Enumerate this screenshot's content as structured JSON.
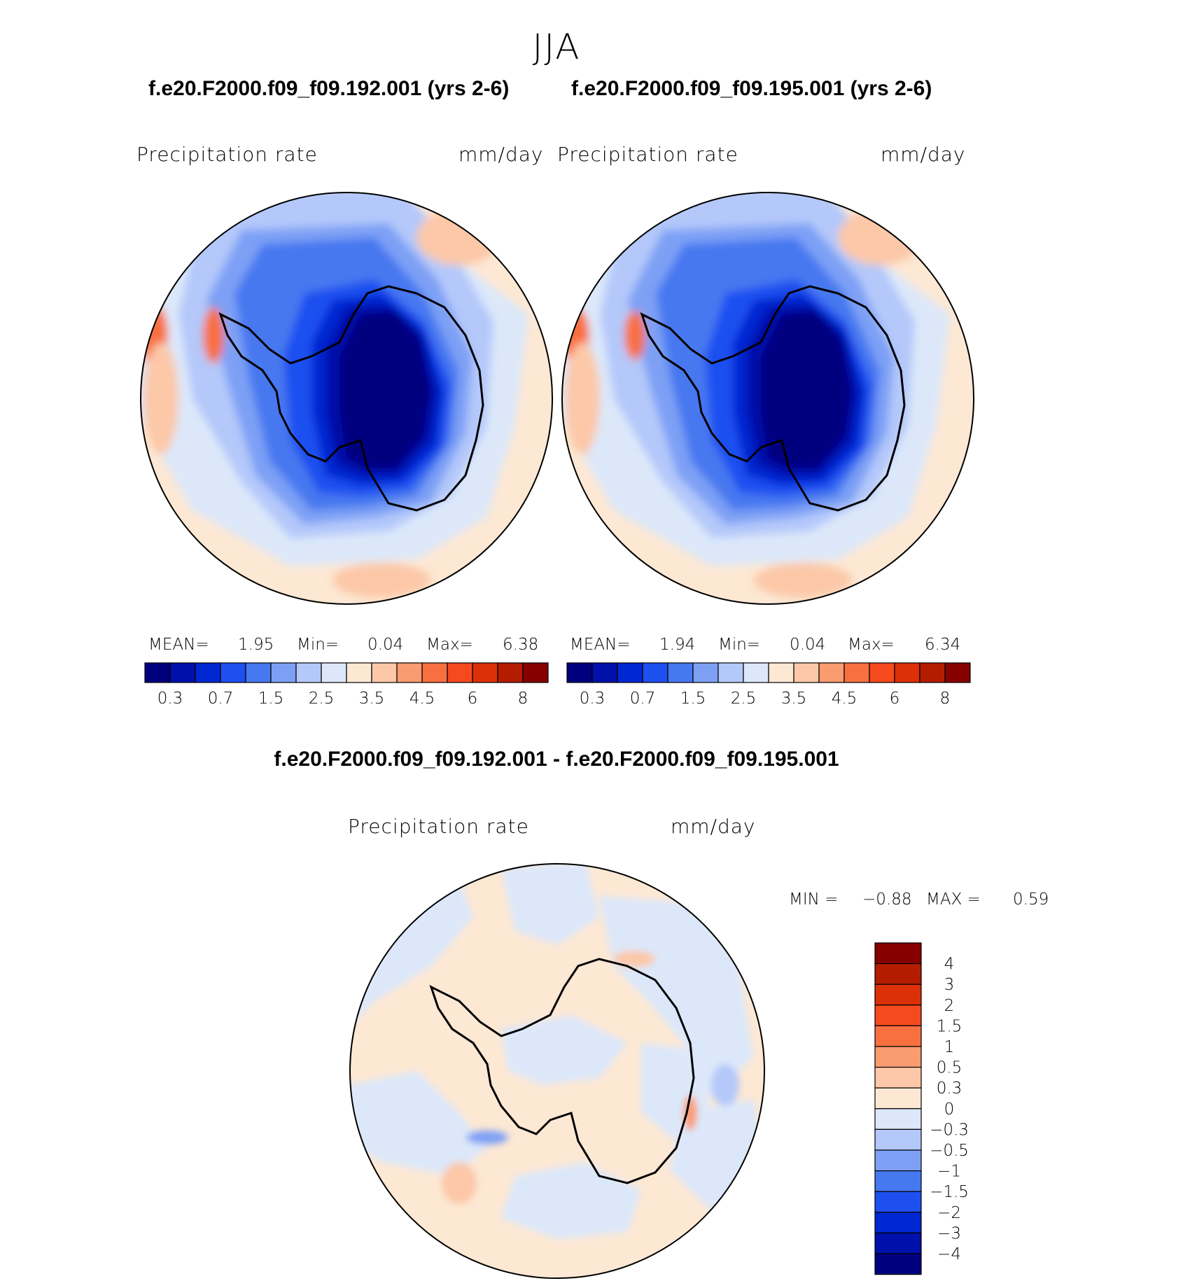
{
  "title": "JJA",
  "colors": [
    "#00007f",
    "#0010aa",
    "#0028d2",
    "#1e50f0",
    "#4678f0",
    "#7da0f5",
    "#b4c8fa",
    "#dce8fa",
    "#fde8d4",
    "#fcc8a8",
    "#fa9b70",
    "#f87040",
    "#f54a1e",
    "#dc3008",
    "#b41c00",
    "#870000"
  ],
  "panels": [
    {
      "case": "f.e20.F2000.f09_f09.192.001 (yrs 2-6)",
      "variable": "Precipitation  rate",
      "units": "mm/day",
      "stats": {
        "mean_label": "MEAN=",
        "mean": "1.95",
        "min_label": "Min=",
        "min": "0.04",
        "max_label": "Max=",
        "max": "6.38"
      }
    },
    {
      "case": "f.e20.F2000.f09_f09.195.001 (yrs 2-6)",
      "variable": "Precipitation  rate",
      "units": "mm/day",
      "stats": {
        "mean_label": "MEAN=",
        "mean": "1.94",
        "min_label": "Min=",
        "min": "0.04",
        "max_label": "Max=",
        "max": "6.34"
      }
    }
  ],
  "colorbar_labels": [
    "0.3",
    "0.7",
    "1.5",
    "2.5",
    "3.5",
    "4.5",
    "6",
    "8"
  ],
  "difference": {
    "title": "f.e20.F2000.f09_f09.192.001 - f.e20.F2000.f09_f09.195.001",
    "variable": "Precipitation  rate",
    "units": "mm/day",
    "min_label": "MIN =",
    "min": "−0.88",
    "max_label": "MAX =",
    "max": "0.59",
    "colorbar_labels": [
      "4",
      "3",
      "2",
      "1.5",
      "1",
      "0.5",
      "0.3",
      "0",
      "−0.3",
      "−0.5",
      "−1",
      "−1.5",
      "−2",
      "−3",
      "−4"
    ]
  },
  "chart_data": [
    {
      "type": "heatmap",
      "projection": "south-polar-stereographic",
      "case": "f.e20.F2000.f09_f09.192.001 (yrs 2-6)",
      "variable": "Precipitation  rate",
      "units": "mm/day",
      "mean": 1.95,
      "min": 0.04,
      "max": 6.38,
      "levels": [
        0.3,
        0.7,
        1.5,
        2.5,
        3.5,
        4.5,
        6,
        8
      ]
    },
    {
      "type": "heatmap",
      "projection": "south-polar-stereographic",
      "case": "f.e20.F2000.f09_f09.195.001 (yrs 2-6)",
      "variable": "Precipitation  rate",
      "units": "mm/day",
      "mean": 1.94,
      "min": 0.04,
      "max": 6.34,
      "levels": [
        0.3,
        0.7,
        1.5,
        2.5,
        3.5,
        4.5,
        6,
        8
      ]
    },
    {
      "type": "heatmap",
      "projection": "south-polar-stereographic",
      "case": "f.e20.F2000.f09_f09.192.001 - f.e20.F2000.f09_f09.195.001",
      "variable": "Precipitation  rate",
      "units": "mm/day",
      "min": -0.88,
      "max": 0.59,
      "levels": [
        -4,
        -3,
        -2,
        -1.5,
        -1,
        -0.5,
        -0.3,
        0,
        0.3,
        0.5,
        1,
        1.5,
        2,
        3,
        4
      ]
    }
  ]
}
